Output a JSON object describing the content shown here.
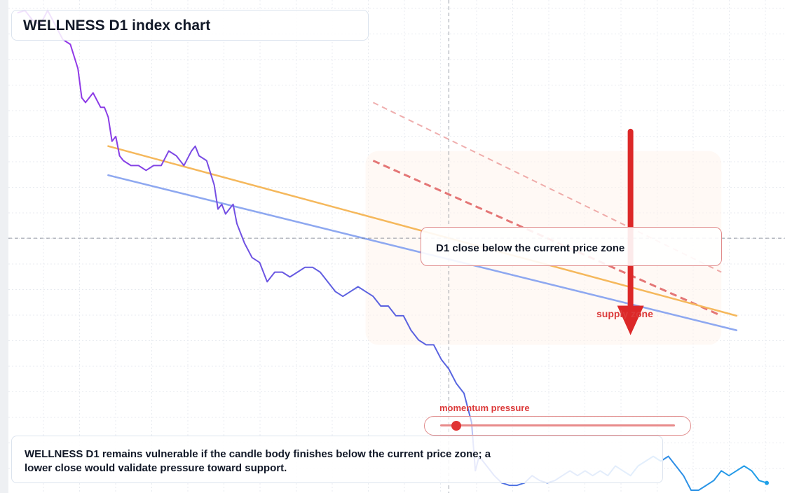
{
  "title": "WELLNESS D1 index chart",
  "note": "WELLNESS D1 remains vulnerable if the candle body finishes below the current price zone; a lower close would validate pressure toward support.",
  "callout": "D1 close below the current price zone",
  "annotations": {
    "supply": "supply zone",
    "momentum": "momentum pressure",
    "momentum_level": 0.07
  },
  "colors": {
    "price_start": "#9b30e8",
    "price_mid": "#5b62e0",
    "price_end": "#1ea0e8",
    "trend_upper": "#f5b85c",
    "trend_lower": "#8ea8f0",
    "zone_line": "#e06060",
    "arrow": "#dc2828",
    "crosshair": "#6b7280"
  },
  "chart_data": {
    "type": "line",
    "title": "WELLNESS D1 index chart",
    "xlabel": "",
    "ylabel": "",
    "grid": true,
    "x_range": [
      0,
      100
    ],
    "y_range": [
      0,
      100
    ],
    "crosshair": {
      "x": 58,
      "y": 52
    },
    "series": [
      {
        "values": [
          [
            1,
            98.5
          ],
          [
            2,
            99
          ],
          [
            3,
            97
          ],
          [
            4,
            96
          ],
          [
            5,
            99
          ],
          [
            6,
            96
          ],
          [
            7,
            93
          ],
          [
            8,
            92
          ],
          [
            9,
            87
          ],
          [
            9.5,
            81
          ],
          [
            10,
            80
          ],
          [
            11,
            82
          ],
          [
            12,
            79
          ],
          [
            12.5,
            79
          ],
          [
            13,
            77
          ],
          [
            13.5,
            72
          ],
          [
            14,
            73
          ],
          [
            14.5,
            69
          ],
          [
            15,
            68
          ],
          [
            16,
            67
          ],
          [
            16.5,
            67
          ],
          [
            17,
            67
          ],
          [
            18,
            66
          ],
          [
            19,
            67
          ],
          [
            20,
            67
          ],
          [
            21,
            70
          ],
          [
            22,
            69
          ],
          [
            23,
            67
          ],
          [
            24,
            70
          ],
          [
            24.5,
            71
          ],
          [
            25,
            69
          ],
          [
            26,
            68
          ],
          [
            27,
            63
          ],
          [
            27.5,
            58
          ],
          [
            28,
            59
          ],
          [
            28.5,
            57
          ],
          [
            29,
            58
          ],
          [
            29.5,
            59
          ],
          [
            30,
            55
          ],
          [
            31,
            51
          ],
          [
            32,
            48
          ],
          [
            33,
            47
          ],
          [
            34,
            43
          ],
          [
            35,
            45
          ],
          [
            36,
            45
          ],
          [
            37,
            44
          ],
          [
            38,
            45
          ],
          [
            39,
            46
          ],
          [
            40,
            46
          ],
          [
            41,
            45
          ],
          [
            42,
            43
          ],
          [
            43,
            41
          ],
          [
            44,
            40
          ],
          [
            45,
            41
          ],
          [
            46,
            42
          ],
          [
            47,
            41
          ],
          [
            48,
            40
          ],
          [
            49,
            38
          ],
          [
            50,
            38
          ],
          [
            51,
            36
          ],
          [
            52,
            36
          ],
          [
            53,
            33
          ],
          [
            54,
            31
          ],
          [
            55,
            30
          ],
          [
            56,
            30
          ],
          [
            57,
            27
          ],
          [
            58,
            25
          ],
          [
            59,
            22
          ],
          [
            60,
            20
          ],
          [
            61,
            14
          ],
          [
            61.5,
            4
          ],
          [
            62,
            7
          ],
          [
            63,
            5
          ],
          [
            64,
            3
          ],
          [
            65,
            1.5
          ],
          [
            66,
            1
          ],
          [
            67,
            1
          ],
          [
            68,
            1.5
          ],
          [
            69,
            3
          ],
          [
            70,
            2
          ],
          [
            71,
            1.5
          ],
          [
            72,
            2
          ],
          [
            73,
            3
          ],
          [
            74,
            4
          ],
          [
            75,
            3
          ],
          [
            76,
            4
          ],
          [
            77,
            3
          ],
          [
            78,
            4
          ],
          [
            79,
            3
          ],
          [
            80,
            5
          ],
          [
            81,
            4
          ],
          [
            82,
            3
          ],
          [
            83,
            5
          ],
          [
            84,
            6
          ],
          [
            85,
            7
          ],
          [
            86,
            6
          ],
          [
            87,
            7
          ],
          [
            88,
            5
          ],
          [
            89,
            3
          ],
          [
            90,
            0
          ],
          [
            91,
            0
          ],
          [
            92,
            1
          ],
          [
            93,
            2
          ],
          [
            94,
            4
          ],
          [
            95,
            3
          ],
          [
            96,
            4
          ],
          [
            97,
            5
          ],
          [
            98,
            4
          ],
          [
            99,
            2
          ],
          [
            100,
            1.5
          ]
        ]
      }
    ],
    "trendlines": [
      {
        "role": "upper",
        "from": [
          13,
          71
        ],
        "to": [
          96,
          36
        ]
      },
      {
        "role": "lower",
        "from": [
          13,
          65
        ],
        "to": [
          96,
          33
        ]
      }
    ],
    "zone_lines": [
      {
        "from": [
          48,
          68
        ],
        "to": [
          94,
          36
        ]
      },
      {
        "from": [
          48,
          80
        ],
        "to": [
          94,
          45
        ]
      }
    ],
    "supply_zone": {
      "x": [
        47,
        94
      ],
      "y": [
        30,
        70
      ]
    },
    "arrow": {
      "x": 82,
      "from": 74,
      "to": 32
    }
  }
}
